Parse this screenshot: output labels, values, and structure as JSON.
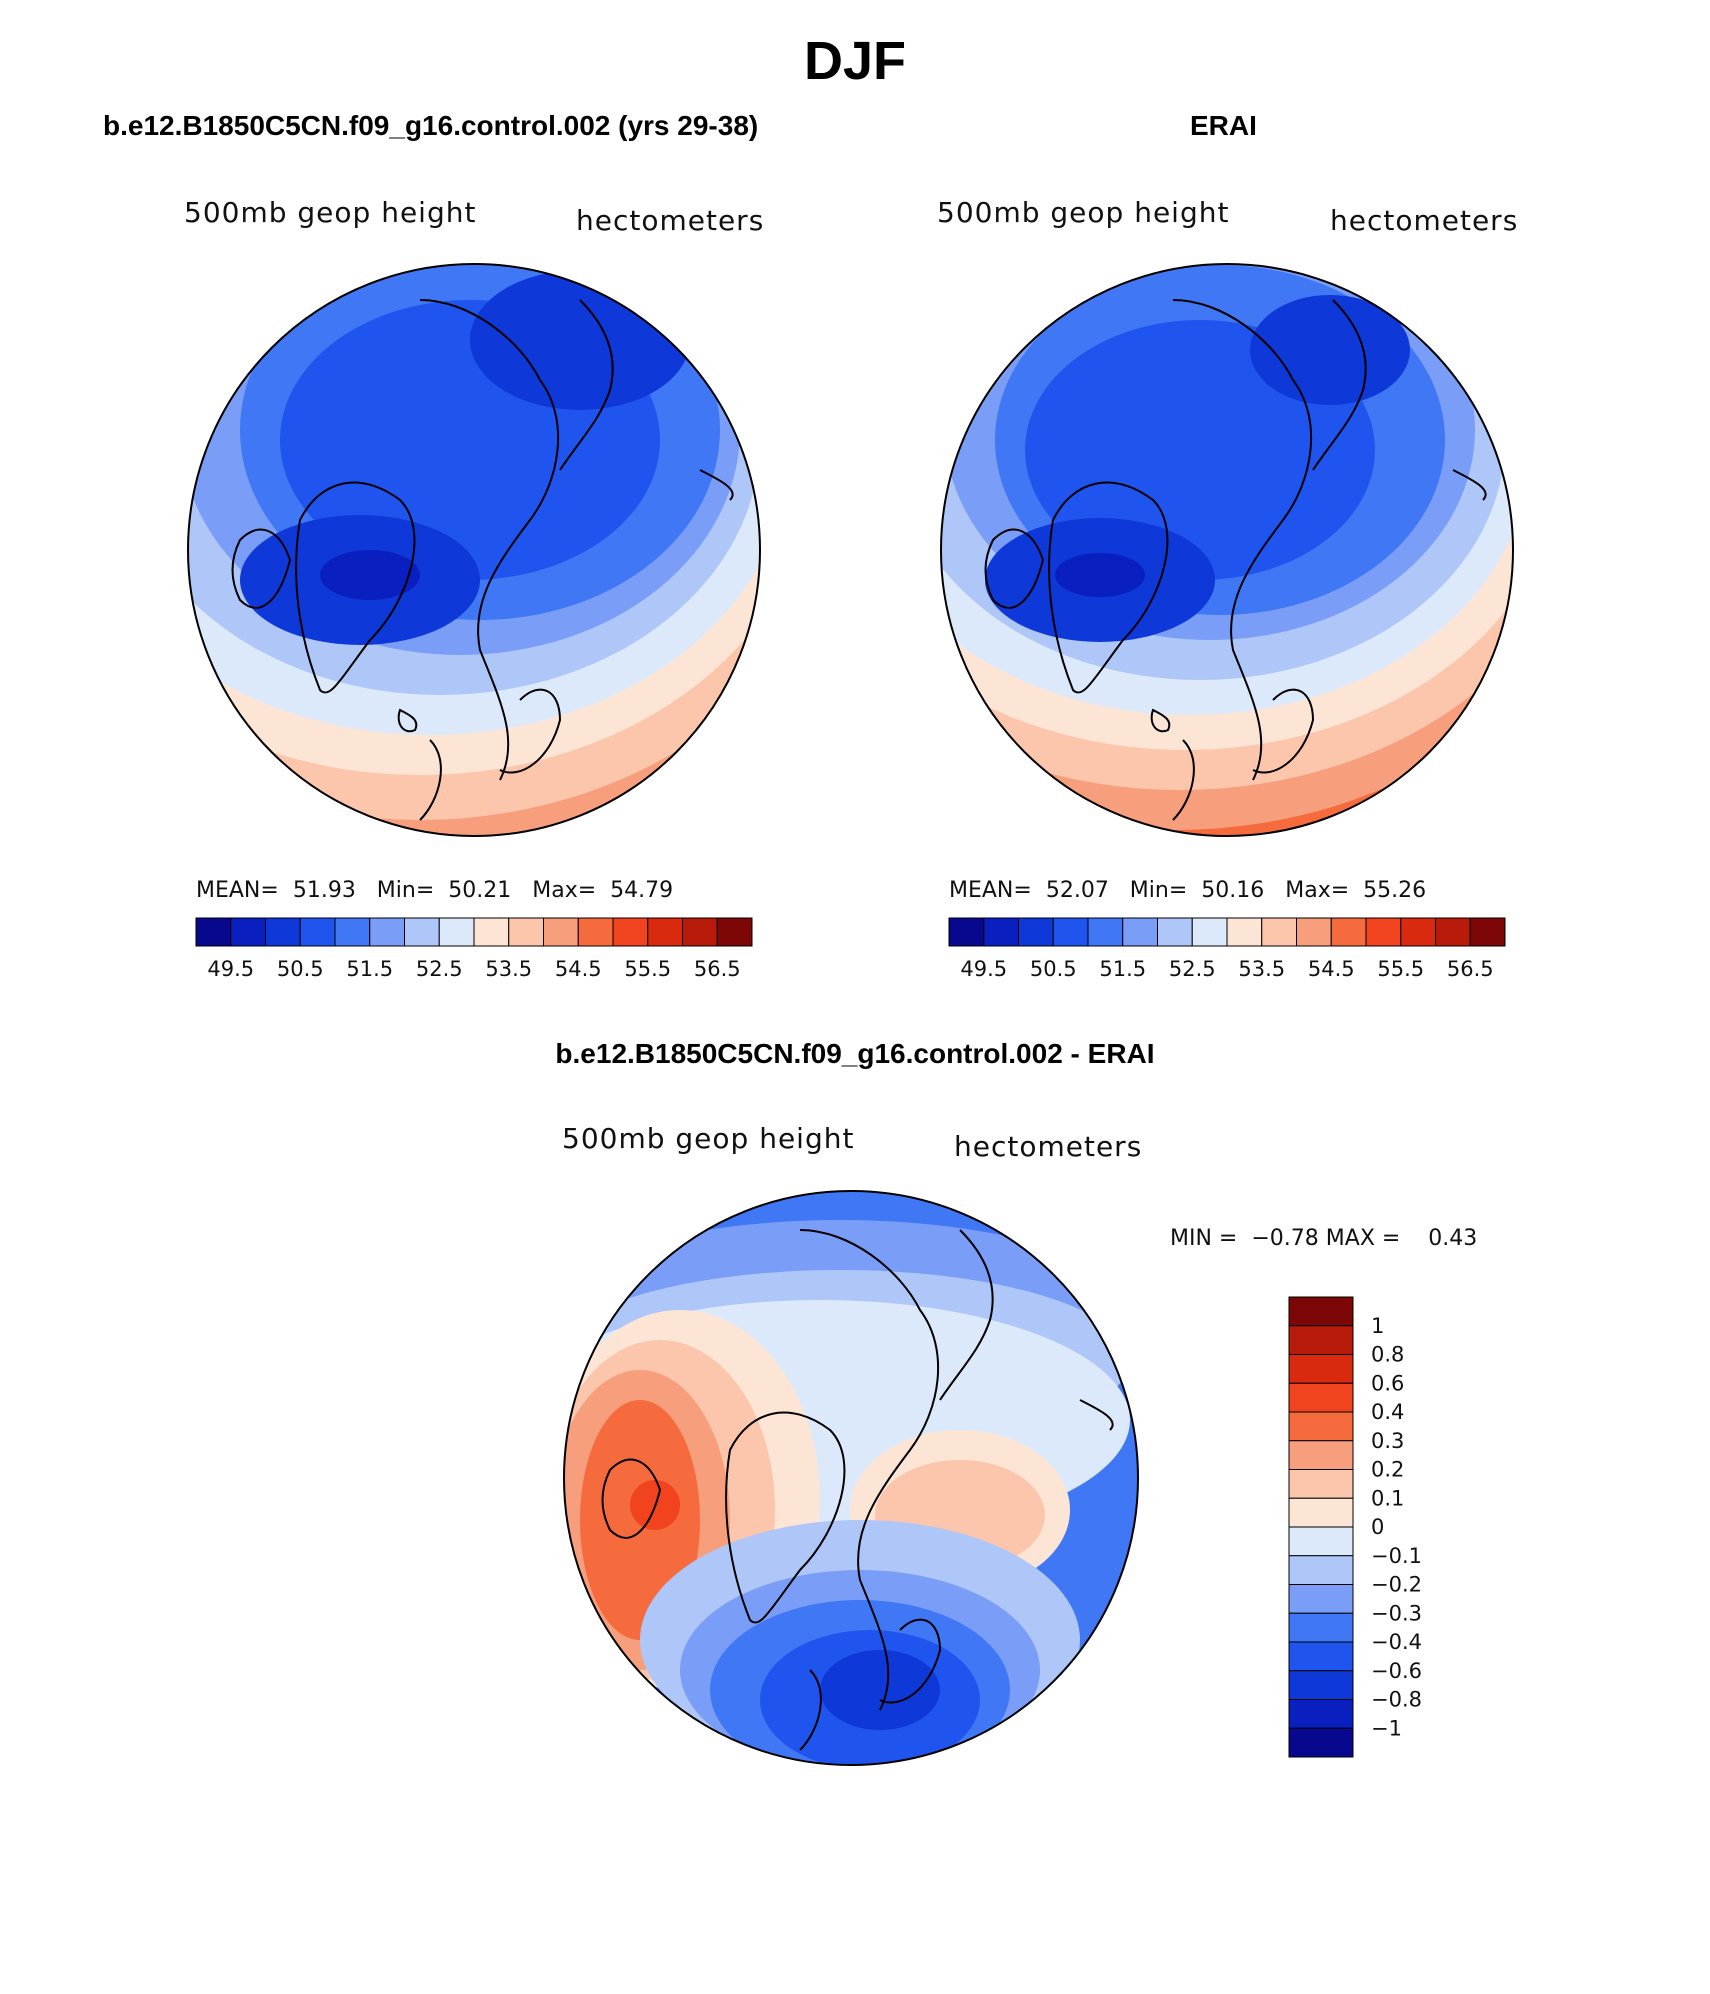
{
  "title": "DJF",
  "panels": {
    "model": {
      "title": "b.e12.B1850C5CN.f09_g16.control.002 (yrs 29-38)",
      "field_label": "500mb geop height",
      "units_label": "hectometers",
      "stats": {
        "mean_label": "MEAN=",
        "mean": "51.93",
        "min_label": "Min=",
        "min": "50.21",
        "max_label": "Max=",
        "max": "54.79"
      }
    },
    "obs": {
      "title": "ERAI",
      "field_label": "500mb geop height",
      "units_label": "hectometers",
      "stats": {
        "mean_label": "MEAN=",
        "mean": "52.07",
        "min_label": "Min=",
        "min": "50.16",
        "max_label": "Max=",
        "max": "55.26"
      }
    },
    "diff": {
      "title": "b.e12.B1850C5CN.f09_g16.control.002 - ERAI",
      "field_label": "500mb geop height",
      "units_label": "hectometers",
      "stats": {
        "min_label": "MIN =",
        "min": "−0.78",
        "max_label": "MAX =",
        "max": "0.43"
      }
    }
  },
  "colorbar_main": {
    "colors": [
      "#08088f",
      "#0a1fbf",
      "#0f38d9",
      "#1f55ee",
      "#3f77f5",
      "#7a9ef7",
      "#aec7f8",
      "#dce9fb",
      "#fde5d6",
      "#fbc6ab",
      "#f79e7c",
      "#f56b3e",
      "#f0431e",
      "#d9290f",
      "#b81b0a",
      "#7d0606"
    ],
    "tick_labels": [
      "49.5",
      "50.5",
      "51.5",
      "52.5",
      "53.5",
      "54.5",
      "55.5",
      "56.5"
    ]
  },
  "colorbar_diff": {
    "colors": [
      "#08088f",
      "#0a1fbf",
      "#0f38d9",
      "#1f55ee",
      "#3f77f5",
      "#7a9ef7",
      "#aec7f8",
      "#dce9fb",
      "#fde5d6",
      "#fbc6ab",
      "#f79e7c",
      "#f56b3e",
      "#f0431e",
      "#d9290f",
      "#b81b0a",
      "#7d0606"
    ],
    "tick_labels": [
      "1",
      "0.8",
      "0.6",
      "0.4",
      "0.3",
      "0.2",
      "0.1",
      "0",
      "−0.1",
      "−0.2",
      "−0.3",
      "−0.4",
      "−0.6",
      "−0.8",
      "−1"
    ]
  },
  "map_colors": {
    "deep": "#0f38d9",
    "mid_blue": "#3f77f5",
    "light_blue": "#7a9ef7",
    "pale_blue": "#aec7f8",
    "very_pale_blue": "#dce9fb",
    "pale_orange": "#fde5d6",
    "light_orange": "#fbc6ab",
    "orange": "#f79e7c",
    "deep_orange": "#f56b3e",
    "red_orange": "#f0431e"
  }
}
